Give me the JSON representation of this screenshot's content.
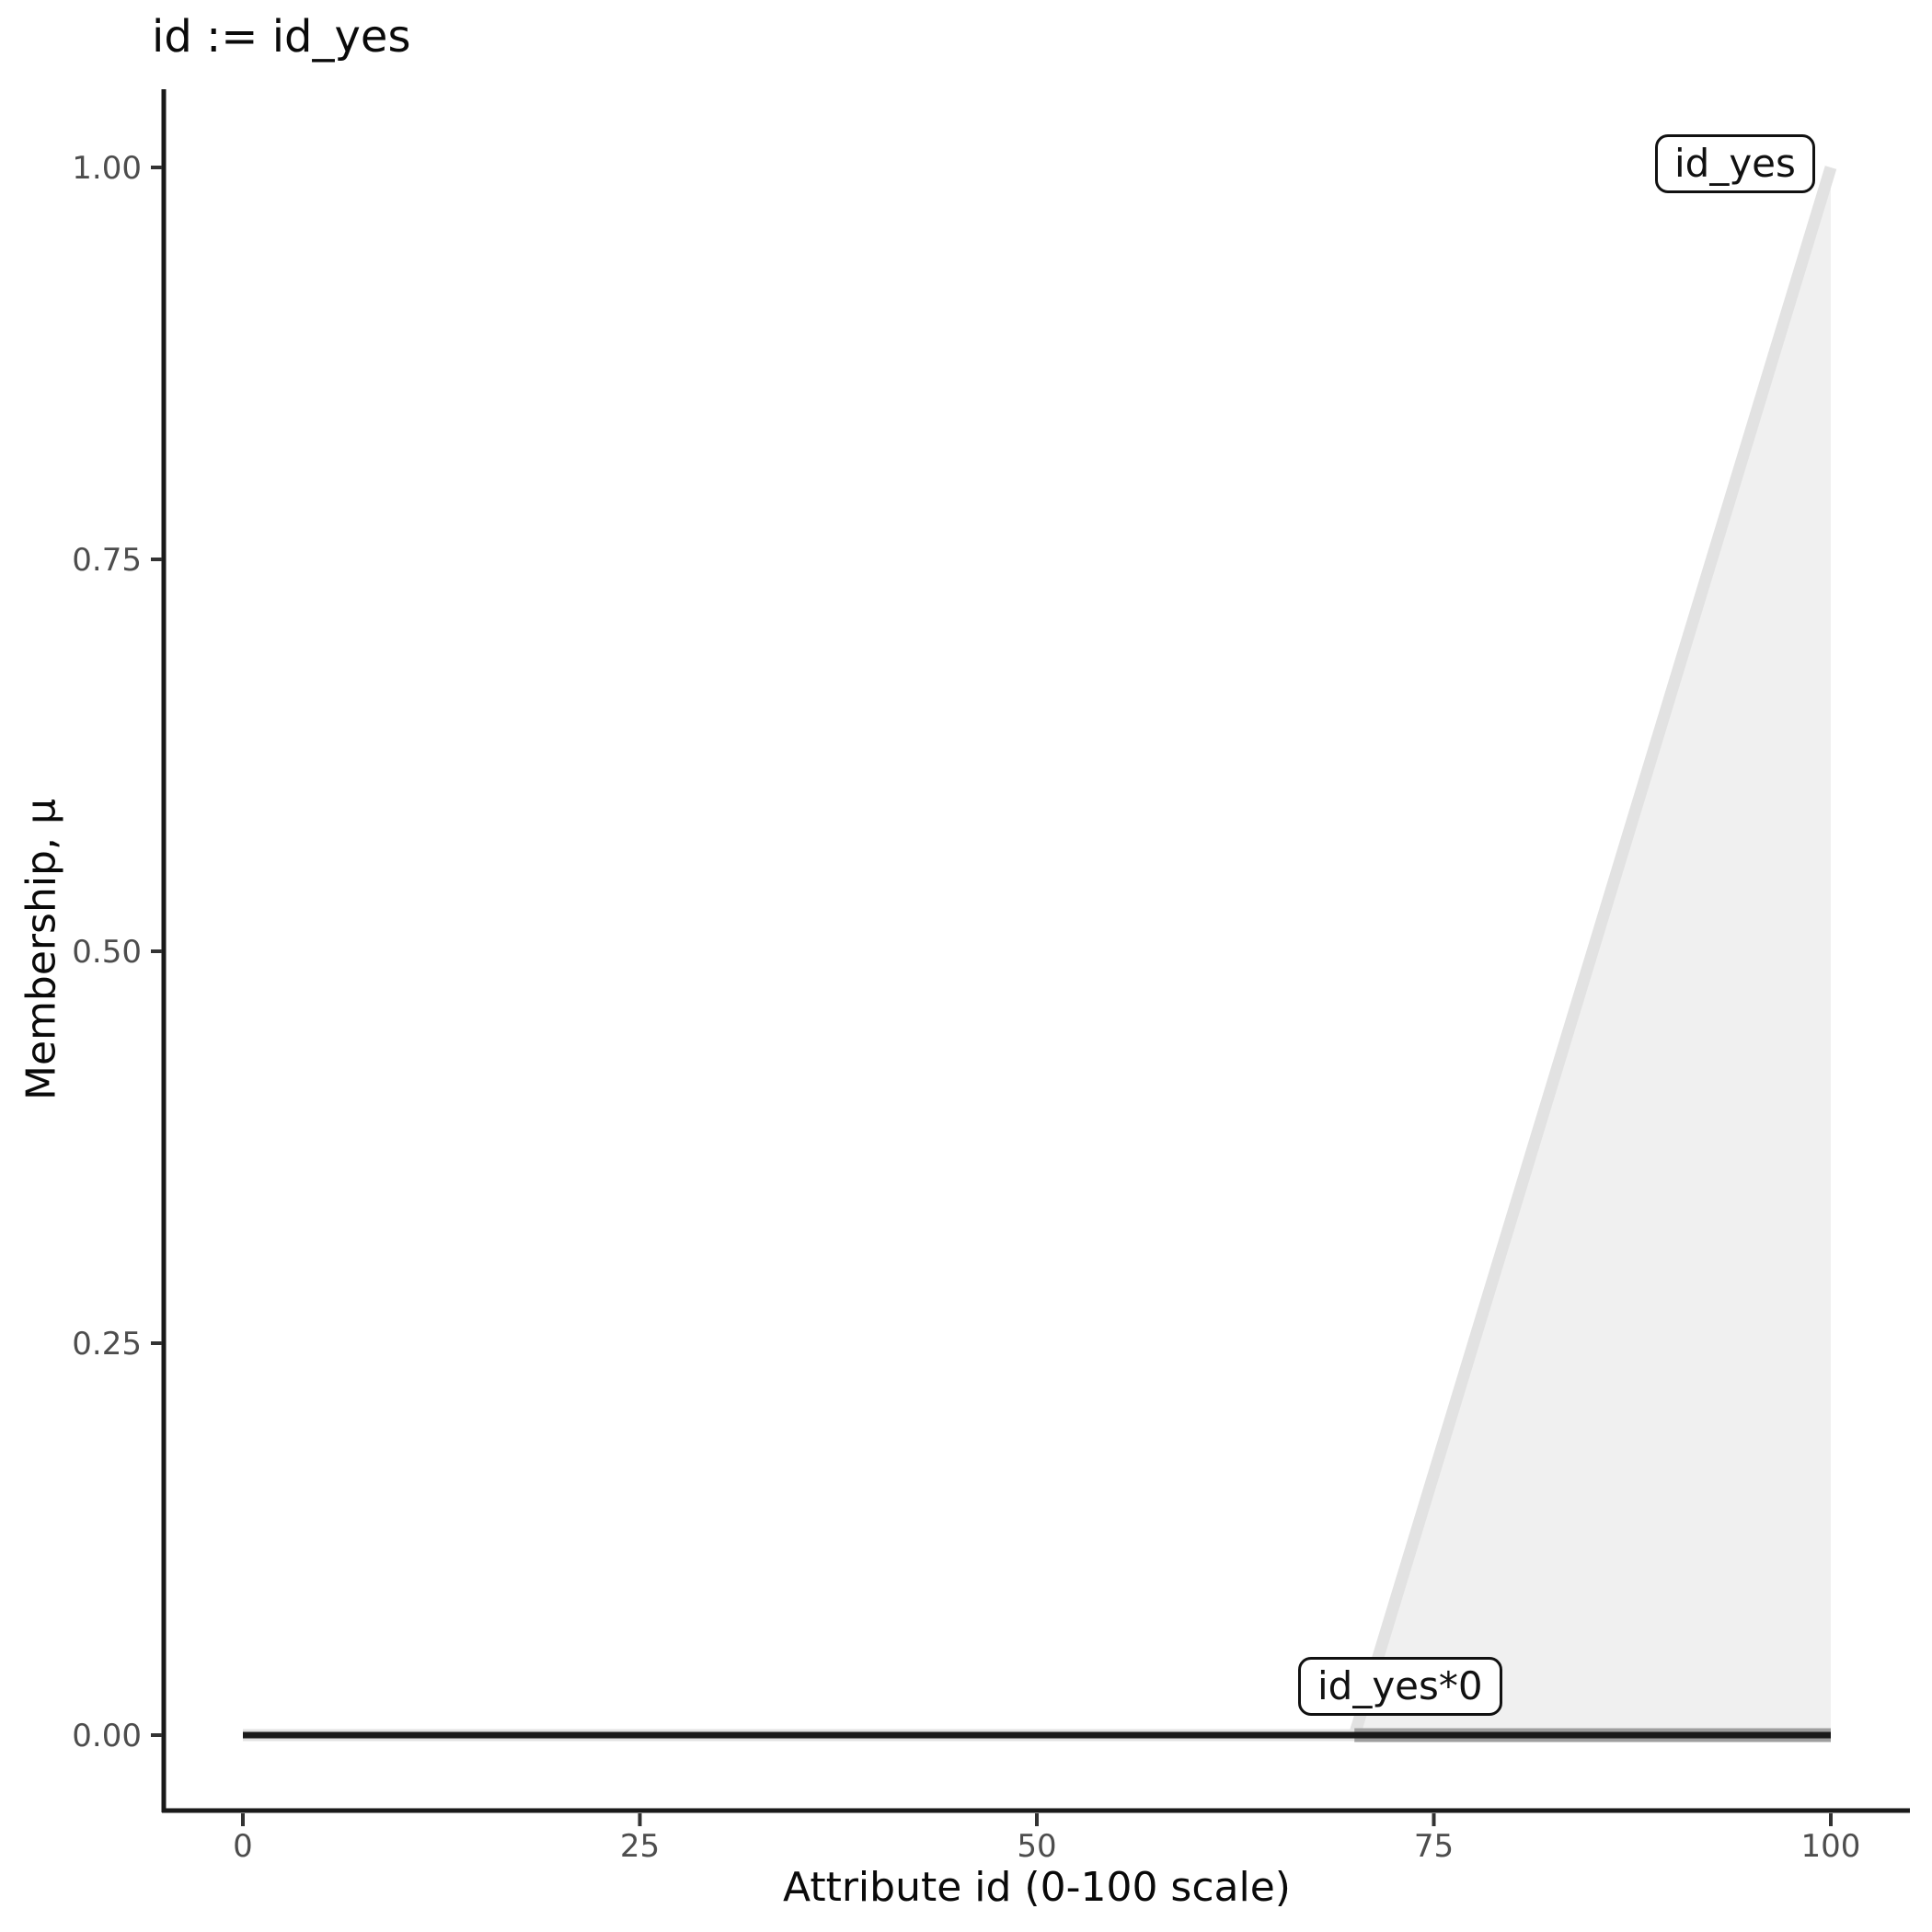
{
  "chart_data": {
    "type": "area",
    "title": "id := id_yes",
    "xlabel": "Attribute id (0-100 scale)",
    "ylabel": "Membership, μ",
    "xlim": [
      0,
      100
    ],
    "ylim": [
      0,
      1
    ],
    "grid": false,
    "legend_position": "none",
    "x_ticks": {
      "values": [
        0,
        25,
        50,
        75,
        100
      ],
      "labels": [
        "0",
        "25",
        "50",
        "75",
        "100"
      ]
    },
    "y_ticks": {
      "values": [
        0,
        0.25,
        0.5,
        0.75,
        1
      ],
      "labels": [
        "0.00",
        "0.25",
        "0.50",
        "0.75",
        "1.00"
      ]
    },
    "series": [
      {
        "name": "id_yes",
        "label": "id_yes",
        "type": "line",
        "color": "#e2e2e2",
        "stroke_width": 13,
        "points": [
          [
            0,
            0
          ],
          [
            70,
            0
          ],
          [
            100,
            1
          ]
        ],
        "fill_polygon": [
          [
            70,
            0
          ],
          [
            100,
            1
          ],
          [
            100,
            0
          ]
        ],
        "fill_color": "#f0f0f0"
      },
      {
        "name": "id_yes*0",
        "label": "id_yes*0",
        "type": "line",
        "color": "#1a1a1a",
        "stroke_width": 7,
        "points": [
          [
            0,
            0
          ],
          [
            100,
            0
          ]
        ],
        "underlay": {
          "points": [
            [
              70,
              0
            ],
            [
              100,
              0
            ]
          ],
          "color": "#9e9e9e",
          "stroke_width": 15
        }
      }
    ],
    "axis": {
      "color": "#1a1a1a",
      "tick_color": "#333333",
      "tick_label_color": "#4d4d4d"
    }
  }
}
